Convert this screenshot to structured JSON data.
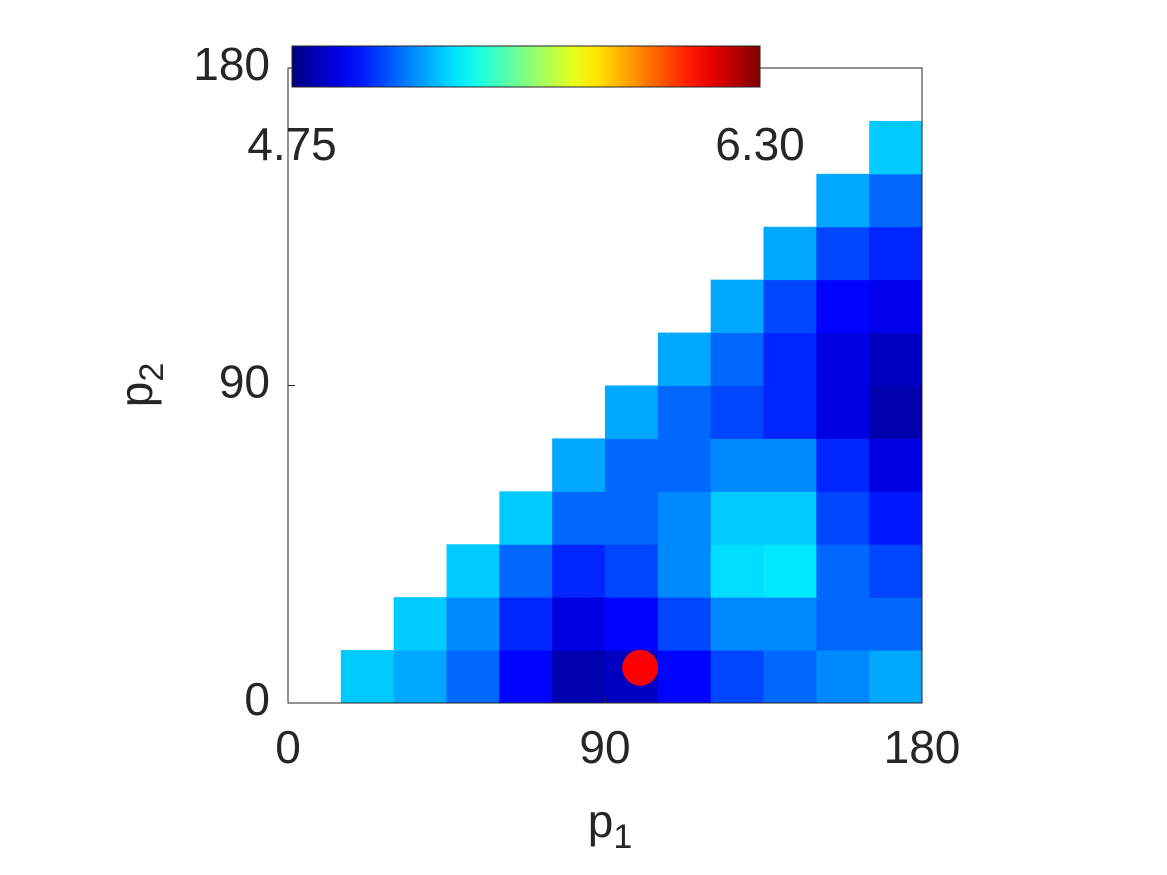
{
  "chart_data": {
    "type": "heatmap",
    "xlabel": "p",
    "xlabel_sub": "1",
    "ylabel": "p",
    "ylabel_sub": "2",
    "xlim": [
      0,
      180
    ],
    "ylim": [
      0,
      180
    ],
    "xticks": [
      0,
      90,
      180
    ],
    "yticks": [
      0,
      90,
      180
    ],
    "xbins": [
      0,
      15,
      30,
      45,
      60,
      75,
      90,
      105,
      120,
      135,
      150,
      165,
      180
    ],
    "ybins": [
      0,
      15,
      30,
      45,
      60,
      75,
      90,
      105,
      120,
      135,
      150,
      165,
      180
    ],
    "z": [
      [
        null,
        5.25,
        5.2,
        5.1,
        4.95,
        4.82,
        4.85,
        4.95,
        5.05,
        5.1,
        5.15,
        5.2
      ],
      [
        null,
        null,
        5.25,
        5.15,
        5.0,
        4.9,
        4.95,
        5.05,
        5.15,
        5.15,
        5.1,
        5.1
      ],
      [
        null,
        null,
        null,
        5.25,
        5.1,
        5.0,
        5.05,
        5.15,
        5.28,
        5.3,
        5.1,
        5.05
      ],
      [
        null,
        null,
        null,
        null,
        5.25,
        5.1,
        5.1,
        5.15,
        5.25,
        5.25,
        5.05,
        4.98
      ],
      [
        null,
        null,
        null,
        null,
        null,
        5.2,
        5.1,
        5.1,
        5.15,
        5.15,
        5.0,
        4.9
      ],
      [
        null,
        null,
        null,
        null,
        null,
        null,
        5.2,
        5.1,
        5.05,
        5.0,
        4.9,
        4.82
      ],
      [
        null,
        null,
        null,
        null,
        null,
        null,
        null,
        5.2,
        5.1,
        5.0,
        4.9,
        4.85
      ],
      [
        null,
        null,
        null,
        null,
        null,
        null,
        null,
        null,
        5.2,
        5.05,
        4.95,
        4.92
      ],
      [
        null,
        null,
        null,
        null,
        null,
        null,
        null,
        null,
        null,
        5.2,
        5.05,
        5.0
      ],
      [
        null,
        null,
        null,
        null,
        null,
        null,
        null,
        null,
        null,
        null,
        5.2,
        5.1
      ],
      [
        null,
        null,
        null,
        null,
        null,
        null,
        null,
        null,
        null,
        null,
        null,
        5.25
      ],
      [
        null,
        null,
        null,
        null,
        null,
        null,
        null,
        null,
        null,
        null,
        null,
        null
      ]
    ],
    "colorbar": {
      "lim": [
        4.75,
        6.3
      ],
      "ticks": [
        4.75,
        {
          "value": 6.3,
          "label": "6.30"
        }
      ]
    },
    "points": {
      "x": [
        100
      ],
      "y": [
        10
      ],
      "color": "#ff0000"
    }
  }
}
